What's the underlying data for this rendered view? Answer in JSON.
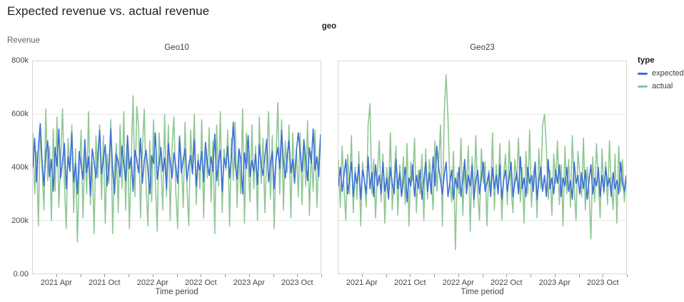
{
  "page": {
    "title": "Expected revenue vs. actual revenue"
  },
  "facet": {
    "title": "geo",
    "panels": [
      "Geo10",
      "Geo23"
    ]
  },
  "legend": {
    "title": "type",
    "items": [
      {
        "label": "expected",
        "color": "#3e70d6"
      },
      {
        "label": "actual",
        "color": "#8fc795"
      }
    ]
  },
  "y_axis": {
    "title": "Revenue",
    "ticks": [
      "800k",
      "600k",
      "400k",
      "200k",
      "0.00"
    ],
    "grid_values_k": [
      600,
      400,
      200
    ],
    "max_k": 800
  },
  "x_axis": {
    "title": "Time period",
    "labels": [
      "2021 Apr",
      "2021 Oct",
      "2022 Apr",
      "2022 Oct",
      "2023 Apr",
      "2023 Oct"
    ],
    "label_months": [
      3,
      9,
      15,
      21,
      27,
      33
    ],
    "minor_tick_months": [
      3,
      6,
      9,
      12,
      15,
      18,
      21,
      24,
      27,
      30,
      33,
      36
    ],
    "total_months": 36
  },
  "colors": {
    "expected": "#3e70d6",
    "actual": "#8fc795",
    "grid": "#e7e7e7",
    "panel_border": "#d8d8d8"
  },
  "chart_data": [
    {
      "type": "line",
      "title": "Geo10",
      "x_range": [
        "2021 Jan",
        "2023 Dec"
      ],
      "x_unit": "week",
      "ylim_k": [
        0,
        800
      ],
      "unit": "thousands of revenue",
      "series": [
        {
          "name": "expected",
          "color": "#3e70d6",
          "values_k": [
            400,
            510,
            345,
            480,
            565,
            420,
            330,
            455,
            500,
            365,
            430,
            310,
            475,
            405,
            545,
            360,
            425,
            490,
            320,
            440,
            385,
            530,
            345,
            415,
            300,
            460,
            410,
            355,
            505,
            380,
            440,
            295,
            470,
            420,
            360,
            445,
            540,
            375,
            430,
            485,
            330,
            410,
            545,
            390,
            300,
            450,
            420,
            365,
            480,
            415,
            350,
            520,
            395,
            440,
            310,
            465,
            430,
            380,
            510,
            340,
            425,
            465,
            390,
            300,
            445,
            415,
            530,
            355,
            410,
            475,
            385,
            435,
            320,
            490,
            420,
            360,
            455,
            405,
            340,
            515,
            380,
            430,
            470,
            350,
            410,
            445,
            375,
            505,
            330,
            425,
            390,
            460,
            345,
            495,
            415,
            370,
            440,
            385,
            525,
            350,
            420,
            465,
            310,
            435,
            400,
            480,
            360,
            445,
            570,
            410,
            355,
            470,
            430,
            300,
            455,
            395,
            520,
            365,
            425,
            385,
            450,
            335,
            485,
            410,
            370,
            440,
            505,
            345,
            415,
            460,
            320,
            430,
            475,
            395,
            540,
            420,
            360,
            445,
            500,
            380,
            430,
            340,
            465,
            530,
            455,
            385,
            505,
            430,
            350,
            475,
            415,
            545,
            390,
            440,
            365,
            525
          ]
        },
        {
          "name": "actual",
          "color": "#8fc795",
          "values_k": [
            530,
            300,
            460,
            180,
            560,
            390,
            240,
            620,
            350,
            480,
            200,
            545,
            310,
            590,
            250,
            430,
            620,
            340,
            170,
            510,
            390,
            560,
            230,
            470,
            120,
            380,
            540,
            210,
            480,
            300,
            610,
            260,
            420,
            150,
            520,
            360,
            560,
            280,
            520,
            190,
            450,
            340,
            580,
            150,
            400,
            490,
            230,
            560,
            320,
            610,
            240,
            520,
            170,
            440,
            670,
            290,
            630,
            550,
            210,
            470,
            620,
            330,
            180,
            500,
            270,
            580,
            350,
            160,
            530,
            410,
            240,
            600,
            290,
            560,
            200,
            480,
            590,
            310,
            170,
            520,
            430,
            250,
            570,
            330,
            180,
            540,
            390,
            600,
            260,
            450,
            320,
            580,
            210,
            490,
            360,
            550,
            270,
            500,
            150,
            560,
            330,
            610,
            230,
            470,
            390,
            540,
            180,
            510,
            350,
            570,
            250,
            460,
            300,
            620,
            190,
            530,
            410,
            270,
            560,
            320,
            480,
            200,
            590,
            340,
            510,
            230,
            450,
            610,
            280,
            520,
            170,
            440,
            645,
            300,
            580,
            240,
            500,
            380,
            560,
            210,
            530,
            350,
            470,
            290,
            530,
            260,
            490,
            330,
            575,
            220,
            460,
            310,
            540,
            250,
            430,
            520
          ]
        }
      ]
    },
    {
      "type": "line",
      "title": "Geo23",
      "x_range": [
        "2021 Jan",
        "2023 Dec"
      ],
      "x_unit": "week",
      "ylim_k": [
        0,
        800
      ],
      "unit": "thousands of revenue",
      "series": [
        {
          "name": "expected",
          "color": "#3e70d6",
          "values_k": [
            330,
            400,
            310,
            370,
            430,
            300,
            360,
            420,
            290,
            380,
            340,
            410,
            280,
            390,
            350,
            300,
            440,
            320,
            380,
            290,
            410,
            330,
            370,
            300,
            420,
            310,
            360,
            280,
            400,
            340,
            300,
            430,
            320,
            380,
            290,
            350,
            400,
            270,
            360,
            330,
            410,
            290,
            370,
            320,
            390,
            280,
            350,
            420,
            310,
            380,
            300,
            440,
            330,
            480,
            400,
            350,
            300,
            370,
            420,
            290,
            340,
            390,
            280,
            360,
            320,
            400,
            290,
            350,
            430,
            300,
            370,
            330,
            410,
            280,
            350,
            390,
            300,
            360,
            420,
            310,
            340,
            380,
            290,
            400,
            320,
            370,
            300,
            410,
            280,
            350,
            390,
            310,
            360,
            420,
            290,
            340,
            380,
            300,
            440,
            320,
            360,
            290,
            400,
            340,
            370,
            310,
            420,
            280,
            350,
            400,
            310,
            370,
            290,
            430,
            320,
            360,
            300,
            390,
            340,
            410,
            290,
            360,
            330,
            400,
            310,
            350,
            280,
            420,
            340,
            370,
            300,
            380,
            320,
            390,
            280,
            350,
            410,
            300,
            360,
            330,
            400,
            290,
            370,
            310,
            400,
            330,
            360,
            290,
            380,
            320,
            350,
            300,
            420,
            340,
            310,
            370
          ]
        },
        {
          "name": "actual",
          "color": "#8fc795",
          "values_k": [
            430,
            250,
            480,
            320,
            200,
            450,
            300,
            520,
            230,
            400,
            280,
            460,
            180,
            420,
            350,
            250,
            560,
            640,
            300,
            430,
            210,
            380,
            500,
            270,
            450,
            190,
            400,
            310,
            530,
            240,
            360,
            480,
            220,
            410,
            300,
            440,
            260,
            490,
            180,
            420,
            350,
            510,
            230,
            390,
            300,
            450,
            200,
            470,
            280,
            430,
            360,
            240,
            500,
            310,
            420,
            560,
            180,
            600,
            750,
            590,
            350,
            270,
            460,
            90,
            380,
            300,
            510,
            220,
            400,
            330,
            480,
            160,
            440,
            250,
            520,
            310,
            200,
            470,
            340,
            420,
            180,
            390,
            290,
            530,
            240,
            410,
            310,
            490,
            200,
            370,
            450,
            260,
            500,
            320,
            230,
            430,
            350,
            510,
            270,
            400,
            190,
            460,
            300,
            540,
            250,
            380,
            420,
            210,
            470,
            320,
            560,
            600,
            480,
            280,
            390,
            220,
            450,
            340,
            500,
            260,
            410,
            180,
            480,
            300,
            430,
            250,
            520,
            330,
            200,
            460,
            380,
            290,
            510,
            240,
            400,
            310,
            130,
            440,
            270,
            490,
            350,
            210,
            470,
            300,
            420,
            260,
            500,
            330,
            240,
            450,
            190,
            480,
            310,
            430,
            270,
            350
          ]
        }
      ]
    }
  ]
}
